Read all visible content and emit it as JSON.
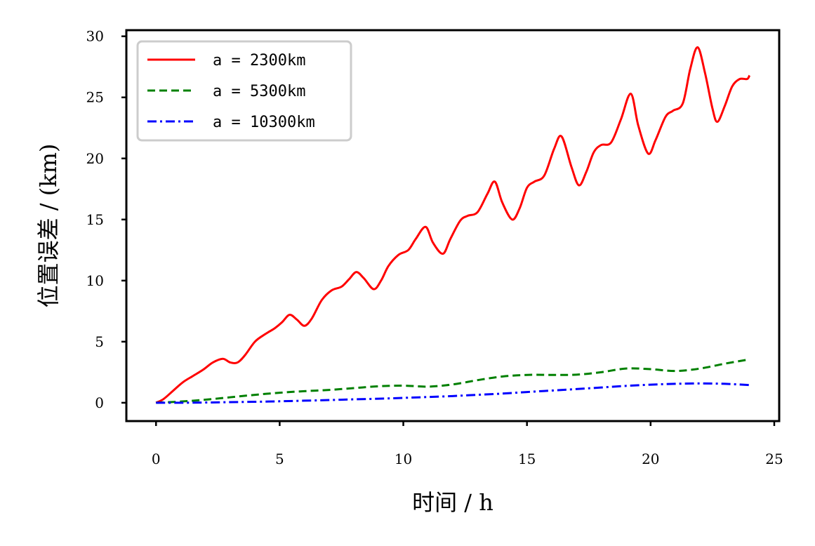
{
  "chart_data": {
    "type": "line",
    "xlabel": "时间 / h",
    "ylabel": "位置误差 / (km)",
    "xlim": [
      -1.2,
      25.2
    ],
    "ylim": [
      -1.5,
      30.5
    ],
    "xticks": [
      0,
      5,
      10,
      15,
      20,
      25
    ],
    "yticks": [
      0,
      5,
      10,
      15,
      20,
      25,
      30
    ],
    "grid": false,
    "legend_position": "top-left",
    "series": [
      {
        "name": "a = 2300km",
        "color": "#ff0000",
        "style": "solid",
        "x": [
          0,
          0.3,
          0.7,
          1.1,
          1.5,
          1.9,
          2.3,
          2.7,
          3.0,
          3.3,
          3.6,
          4.0,
          4.4,
          4.8,
          5.1,
          5.4,
          5.7,
          6.0,
          6.3,
          6.7,
          7.1,
          7.5,
          7.8,
          8.1,
          8.4,
          8.8,
          9.1,
          9.4,
          9.8,
          10.2,
          10.5,
          10.9,
          11.2,
          11.6,
          11.9,
          12.3,
          12.6,
          13.0,
          13.4,
          13.7,
          14.0,
          14.4,
          14.7,
          15.0,
          15.3,
          15.7,
          16.1,
          16.4,
          16.8,
          17.1,
          17.4,
          17.7,
          18.0,
          18.4,
          18.8,
          19.2,
          19.5,
          19.9,
          20.2,
          20.6,
          20.9,
          21.3,
          21.6,
          21.9,
          22.2,
          22.5,
          22.7,
          23.0,
          23.3,
          23.6,
          23.9,
          24.0
        ],
        "y": [
          0,
          0.3,
          1.0,
          1.7,
          2.2,
          2.7,
          3.3,
          3.6,
          3.3,
          3.3,
          3.9,
          5.0,
          5.6,
          6.1,
          6.6,
          7.2,
          6.8,
          6.3,
          6.9,
          8.4,
          9.2,
          9.5,
          10.1,
          10.7,
          10.2,
          9.3,
          10.0,
          11.2,
          12.1,
          12.5,
          13.4,
          14.4,
          13.1,
          12.2,
          13.4,
          14.9,
          15.3,
          15.6,
          17.1,
          18.1,
          16.4,
          15.0,
          15.9,
          17.6,
          18.1,
          18.6,
          20.8,
          21.8,
          19.3,
          17.8,
          18.9,
          20.5,
          21.1,
          21.3,
          23.2,
          25.3,
          22.7,
          20.4,
          21.5,
          23.4,
          23.9,
          24.5,
          27.3,
          29.1,
          27.0,
          24.1,
          23.0,
          24.3,
          25.9,
          26.5,
          26.5,
          26.8
        ]
      },
      {
        "name": "a = 5300km",
        "color": "#008000",
        "style": "dashed",
        "x": [
          0,
          1,
          2,
          3,
          4,
          5,
          6,
          7,
          8,
          9,
          10,
          11,
          12,
          13,
          14,
          15,
          16,
          17,
          18,
          19,
          20,
          21,
          22,
          23,
          24
        ],
        "y": [
          0,
          0.1,
          0.25,
          0.45,
          0.65,
          0.82,
          0.95,
          1.05,
          1.2,
          1.35,
          1.4,
          1.32,
          1.5,
          1.85,
          2.15,
          2.28,
          2.28,
          2.3,
          2.5,
          2.8,
          2.75,
          2.6,
          2.8,
          3.2,
          3.55
        ]
      },
      {
        "name": "a = 10300km",
        "color": "#0000ff",
        "style": "dashdot",
        "x": [
          0,
          1,
          2,
          3,
          4,
          5,
          6,
          7,
          8,
          9,
          10,
          11,
          12,
          13,
          14,
          15,
          16,
          17,
          18,
          19,
          20,
          21,
          22,
          23,
          24
        ],
        "y": [
          0,
          0.0,
          0.02,
          0.05,
          0.08,
          0.12,
          0.17,
          0.22,
          0.28,
          0.33,
          0.4,
          0.47,
          0.55,
          0.65,
          0.75,
          0.88,
          1.0,
          1.12,
          1.25,
          1.38,
          1.48,
          1.55,
          1.58,
          1.55,
          1.45
        ]
      }
    ]
  }
}
